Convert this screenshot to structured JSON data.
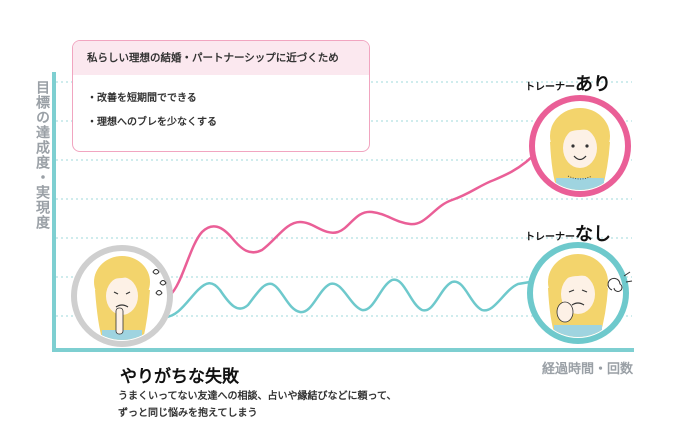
{
  "axis": {
    "y_label": "目標の達成度・実現度",
    "x_label": "経過時間・回数"
  },
  "callout": {
    "heading": "私らしい理想の結婚・パートナーシップに近づくため",
    "items": [
      "・改善を短期間でできる",
      "・理想へのブレを少なくする"
    ]
  },
  "with_trainer": {
    "prefix": "トレーナー",
    "suffix": "あり"
  },
  "without_trainer": {
    "prefix": "トレーナー",
    "suffix": "なし"
  },
  "common_mistake": {
    "title": "やりがちな失敗",
    "description_line1": "うまくいってない友達への相談、占いや縁結びなどに頼って、",
    "description_line2": "ずっと同じ悩みを抱えてしまう"
  },
  "colors": {
    "with_trainer_line": "#ea5f97",
    "without_trainer_line": "#6ec9cc",
    "axis": "#7ecfd1",
    "grid": "#9fd9db",
    "callout_border": "#f1a5c0",
    "callout_header_bg": "#fbe8ef",
    "portrait_start_ring": "#cfcfcf"
  },
  "icons": [
    "worried-woman-portrait",
    "happy-woman-portrait",
    "troubled-woman-portrait",
    "sweat-drops-icon",
    "confusion-swirl-icon"
  ]
}
